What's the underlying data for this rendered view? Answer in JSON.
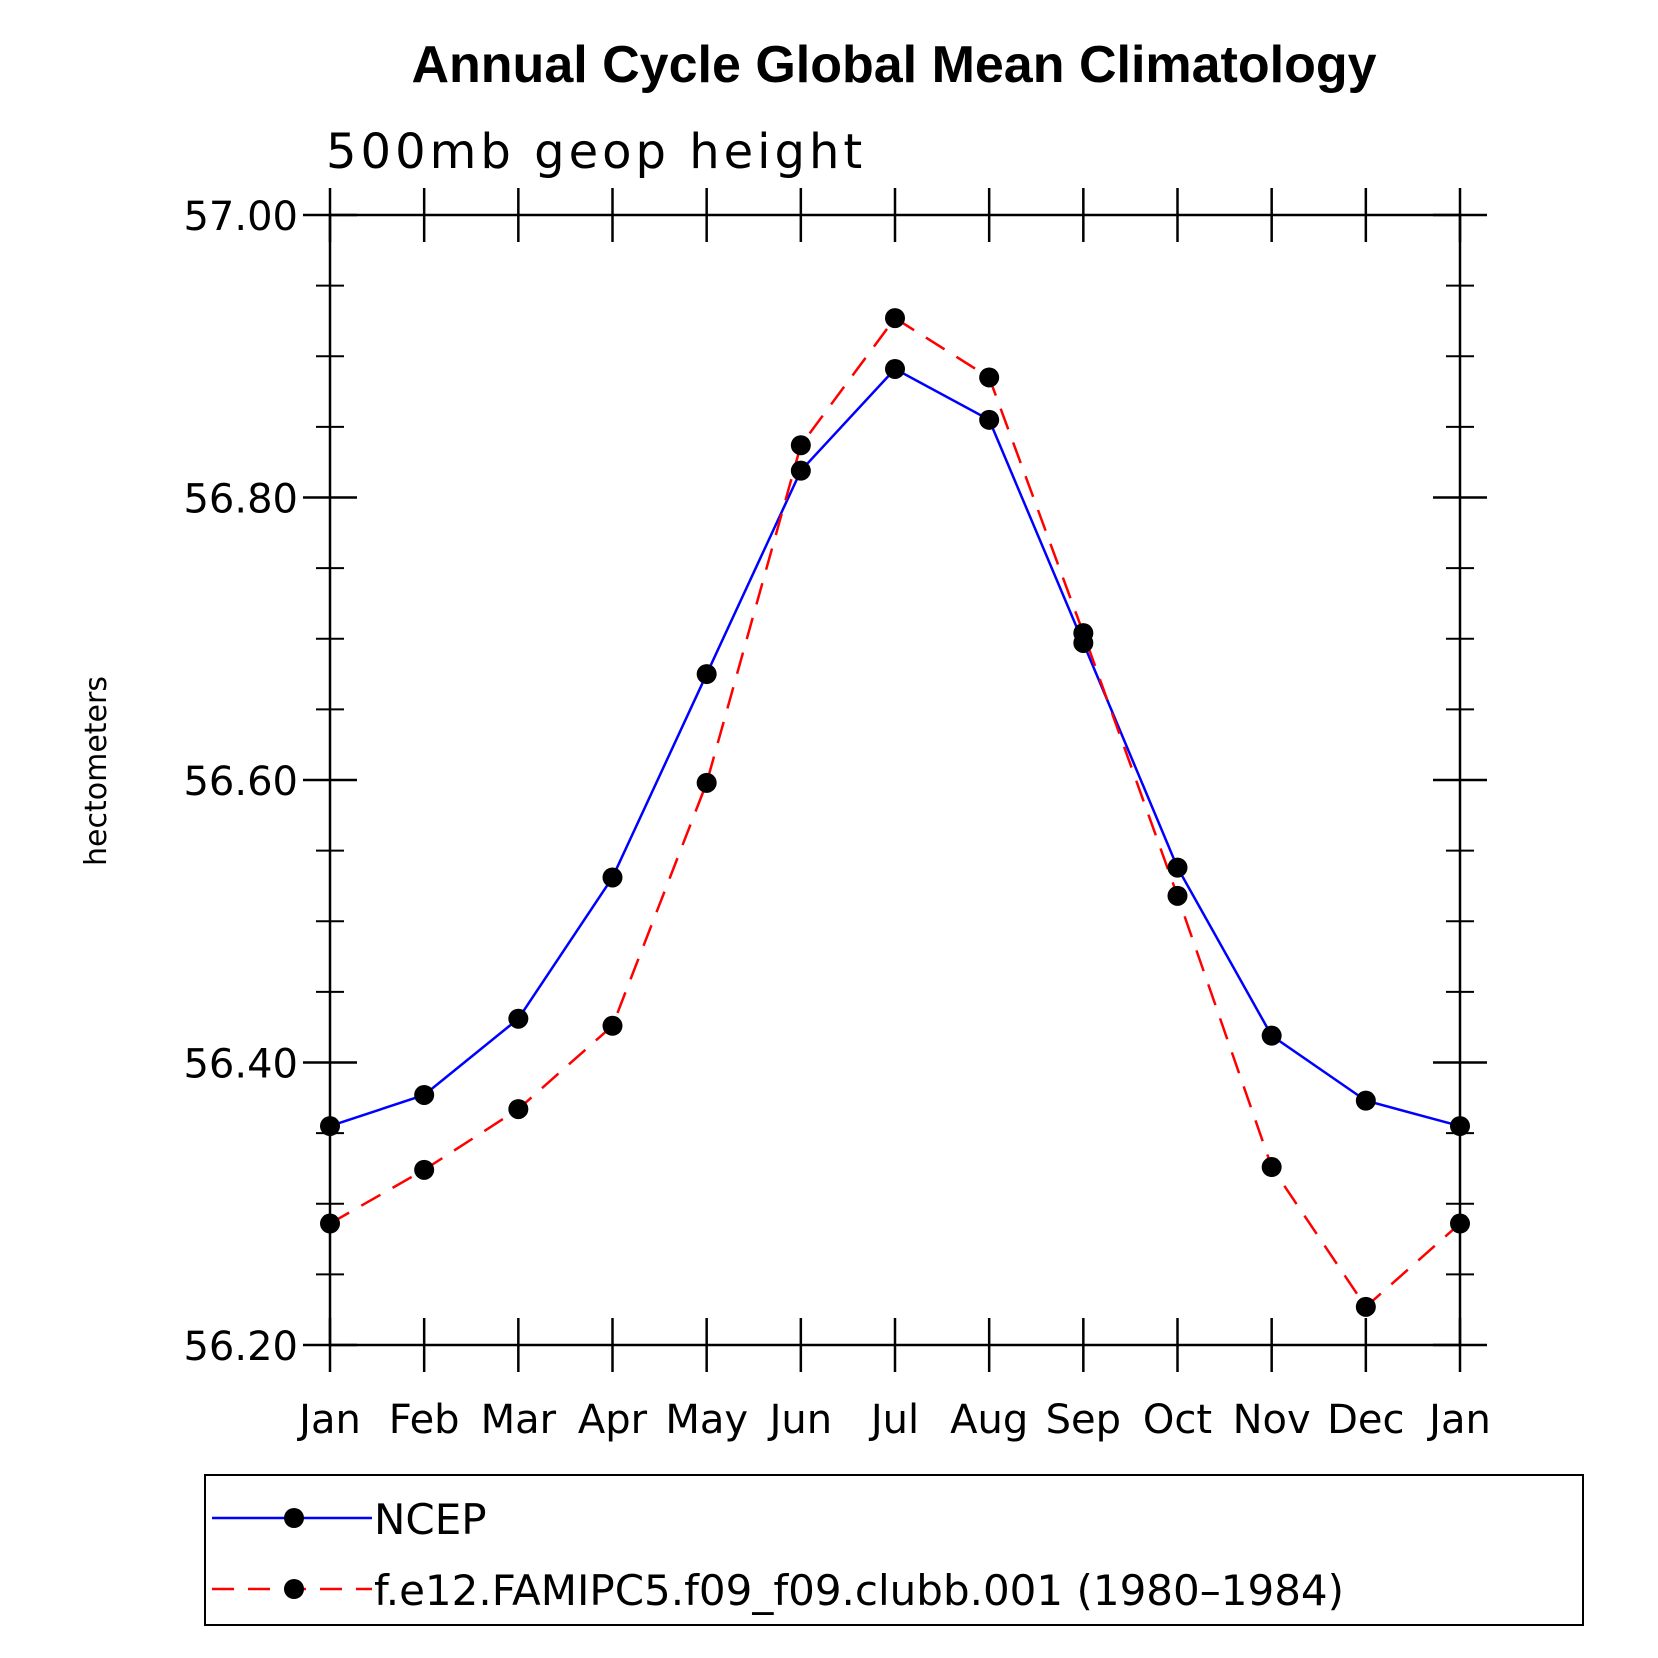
{
  "chart_data": {
    "type": "line",
    "title": "Annual Cycle Global Mean Climatology",
    "subtitle": "500mb geop height",
    "ylabel": "hectometers",
    "xlabel": "",
    "categories": [
      "Jan",
      "Feb",
      "Mar",
      "Apr",
      "May",
      "Jun",
      "Jul",
      "Aug",
      "Sep",
      "Oct",
      "Nov",
      "Dec",
      "Jan"
    ],
    "ylim": [
      56.2,
      57.0
    ],
    "yticks": [
      "56.20",
      "56.40",
      "56.60",
      "56.80",
      "57.00"
    ],
    "ytick_values": [
      56.2,
      56.4,
      56.6,
      56.8,
      57.0
    ],
    "y_minor_step": 0.05,
    "grid": false,
    "legend_position": "bottom",
    "series": [
      {
        "name": "NCEP",
        "color": "#0000ff",
        "dash": "solid",
        "marker": "filled-circle",
        "values": [
          56.355,
          56.377,
          56.431,
          56.531,
          56.675,
          56.819,
          56.891,
          56.855,
          56.697,
          56.538,
          56.419,
          56.373,
          56.355
        ]
      },
      {
        "name": "f.e12.FAMIPC5.f09_f09.clubb.001 (1980–1984)",
        "color": "#ff0000",
        "dash": "dashed",
        "marker": "filled-circle",
        "values": [
          56.286,
          56.324,
          56.367,
          56.426,
          56.598,
          56.837,
          56.927,
          56.885,
          56.704,
          56.518,
          56.326,
          56.227,
          56.286
        ]
      }
    ]
  }
}
